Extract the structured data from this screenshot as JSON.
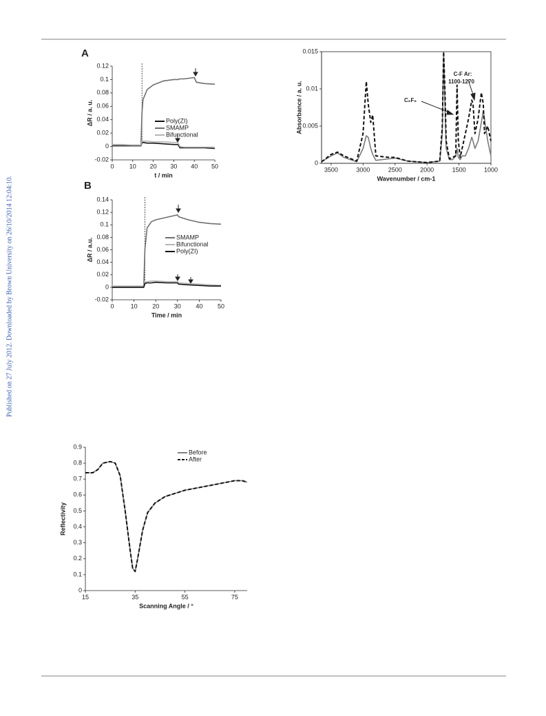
{
  "sidebar_text": "Published on 27 July 2012. Downloaded by Brown University on 26/10/2014 12:04:10.",
  "chart_data": [
    {
      "type": "line",
      "panel_label": "A",
      "xlabel": "t / min",
      "ylabel": "ΔR / a. u.",
      "x": [
        0,
        5,
        10,
        14,
        14.5,
        15,
        17,
        20,
        25,
        30,
        32,
        33,
        35,
        40,
        41,
        45,
        50
      ],
      "xlim": [
        0,
        50
      ],
      "xticks": [
        0,
        10,
        20,
        30,
        40,
        50
      ],
      "ylim": [
        -0.02,
        0.12
      ],
      "yticks": [
        -0.02,
        0,
        0.02,
        0.04,
        0.06,
        0.08,
        0.1,
        0.12
      ],
      "vline": 14.5,
      "legend": "center right",
      "series": [
        {
          "name": "Poly(ZI)",
          "color": "#111111",
          "style": "solid",
          "values": [
            0.001,
            0.001,
            0.001,
            0.001,
            0.006,
            0.006,
            0.005,
            0.005,
            0.004,
            0.003,
            0.003,
            -0.002,
            -0.002,
            -0.002,
            -0.002,
            -0.002,
            -0.003
          ]
        },
        {
          "name": "SMAMP",
          "color": "#6e6e6e",
          "style": "solid",
          "values": [
            0.002,
            0.002,
            0.002,
            0.002,
            0.05,
            0.07,
            0.085,
            0.092,
            0.098,
            0.1,
            0.1,
            0.101,
            0.101,
            0.103,
            0.096,
            0.094,
            0.093
          ]
        },
        {
          "name": "Bifunctional",
          "color": "#b5b5b5",
          "style": "solid",
          "values": [
            0.003,
            0.003,
            0.002,
            0.002,
            0.009,
            0.008,
            0.008,
            0.007,
            0.007,
            0.006,
            0.006,
            0.0,
            -0.001,
            -0.001,
            -0.001,
            -0.001,
            -0.001
          ]
        }
      ]
    },
    {
      "type": "line",
      "panel_label": "B",
      "xlabel": "Time / min",
      "ylabel": "ΔR / a.u.",
      "x": [
        0,
        5,
        10,
        14.5,
        15,
        16,
        18,
        20,
        25,
        30,
        30.5,
        35,
        40,
        45,
        50
      ],
      "xlim": [
        0,
        50
      ],
      "xticks": [
        0,
        10,
        20,
        30,
        40,
        50
      ],
      "ylim": [
        -0.02,
        0.14
      ],
      "yticks": [
        -0.02,
        0,
        0.02,
        0.04,
        0.06,
        0.08,
        0.1,
        0.12,
        0.14
      ],
      "vline": 15,
      "legend": "center right",
      "series": [
        {
          "name": "SMAMP",
          "color": "#6e6e6e",
          "style": "solid",
          "values": [
            0.001,
            0.001,
            0.001,
            0.001,
            0.06,
            0.095,
            0.105,
            0.108,
            0.112,
            0.116,
            0.113,
            0.108,
            0.104,
            0.102,
            0.101
          ]
        },
        {
          "name": "Bifunctional",
          "color": "#b5b5b5",
          "style": "solid",
          "values": [
            0.002,
            0.002,
            0.002,
            0.002,
            0.008,
            0.009,
            0.01,
            0.01,
            0.009,
            0.009,
            0.007,
            0.006,
            0.005,
            0.004,
            0.003
          ]
        },
        {
          "name": "Poly(ZI)",
          "color": "#111111",
          "style": "solid",
          "values": [
            0.0,
            0.0,
            0.0,
            0.0,
            0.006,
            0.007,
            0.007,
            0.008,
            0.007,
            0.007,
            0.005,
            0.004,
            0.003,
            0.002,
            0.002
          ]
        }
      ]
    },
    {
      "type": "line",
      "xlabel": "Wavenumber / cm-1",
      "ylabel": "Absorbance / a. u.",
      "x": [
        3650,
        3500,
        3400,
        3300,
        3100,
        3000,
        2950,
        2920,
        2880,
        2850,
        2800,
        2600,
        2500,
        2300,
        2000,
        1800,
        1760,
        1740,
        1720,
        1700,
        1650,
        1600,
        1550,
        1530,
        1510,
        1480,
        1450,
        1400,
        1350,
        1300,
        1280,
        1250,
        1200,
        1150,
        1120,
        1100,
        1050,
        1000
      ],
      "xlim": [
        3650,
        1000
      ],
      "xticks": [
        3500,
        3000,
        2500,
        2000,
        1500,
        1000
      ],
      "ylim": [
        0,
        0.015
      ],
      "yticks": [
        0,
        0.005,
        0.01,
        0.015
      ],
      "frame": true,
      "annotations": [
        "C-F Ar:",
        "1100-1270",
        "C₆F₆"
      ],
      "series": [
        {
          "color": "#7a7a7a",
          "style": "solid",
          "values": [
            0.0002,
            0.001,
            0.0014,
            0.0008,
            0.0002,
            0.002,
            0.0037,
            0.0035,
            0.002,
            0.0012,
            0.0004,
            0.0006,
            0.0007,
            0.0003,
            0.0001,
            0.0003,
            0.004,
            0.015,
            0.008,
            0.002,
            0.0005,
            0.0005,
            0.001,
            0.002,
            0.0008,
            0.0005,
            0.001,
            0.001,
            0.002,
            0.0035,
            0.003,
            0.002,
            0.003,
            0.0055,
            0.007,
            0.006,
            0.003,
            0.001
          ]
        },
        {
          "color": "#111111",
          "style": "dashed",
          "values": [
            0.0002,
            0.0012,
            0.0015,
            0.001,
            0.0003,
            0.004,
            0.011,
            0.008,
            0.0055,
            0.0065,
            0.001,
            0.0008,
            0.0008,
            0.0003,
            0.0001,
            0.0003,
            0.005,
            0.015,
            0.01,
            0.003,
            0.0006,
            0.0008,
            0.001,
            0.0105,
            0.003,
            0.0008,
            0.002,
            0.004,
            0.006,
            0.0085,
            0.008,
            0.004,
            0.006,
            0.0095,
            0.008,
            0.004,
            0.005,
            0.003
          ]
        }
      ]
    },
    {
      "type": "line",
      "xlabel": "Scanning Angle / °",
      "ylabel": "Reflectivity",
      "x": [
        15,
        18,
        20,
        22,
        25,
        27,
        29,
        31,
        33,
        34,
        35,
        36,
        38,
        40,
        43,
        47,
        55,
        65,
        75,
        78,
        80
      ],
      "xlim": [
        15,
        80
      ],
      "xticks": [
        15,
        35,
        55,
        75
      ],
      "ylim": [
        0,
        0.9
      ],
      "yticks": [
        0,
        0.1,
        0.2,
        0.3,
        0.4,
        0.5,
        0.6,
        0.7,
        0.8,
        0.9
      ],
      "legend": "upper right",
      "series": [
        {
          "name": "Before",
          "color": "#808080",
          "style": "solid",
          "values": [
            0.74,
            0.74,
            0.76,
            0.8,
            0.81,
            0.8,
            0.72,
            0.5,
            0.25,
            0.14,
            0.12,
            0.2,
            0.38,
            0.49,
            0.55,
            0.59,
            0.63,
            0.66,
            0.69,
            0.69,
            0.68
          ]
        },
        {
          "name": "After",
          "color": "#111111",
          "style": "dashed",
          "values": [
            0.74,
            0.74,
            0.76,
            0.8,
            0.81,
            0.8,
            0.72,
            0.5,
            0.25,
            0.14,
            0.12,
            0.2,
            0.38,
            0.49,
            0.55,
            0.59,
            0.63,
            0.66,
            0.69,
            0.69,
            0.68
          ]
        }
      ]
    }
  ]
}
